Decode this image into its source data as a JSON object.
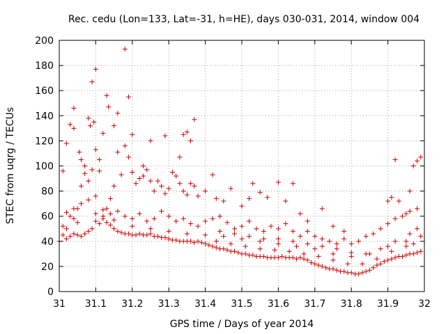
{
  "chart_data": {
    "type": "scatter",
    "title": "Rec. cedu (Lon=133, Lat=-31, h=HE), days 030-031, 2014, window 004",
    "xlabel": "GPS time / Days of year 2014",
    "ylabel": "STEC from uqrg / TECUs",
    "xlim": [
      31,
      32
    ],
    "ylim": [
      0,
      200
    ],
    "xticks": [
      "31",
      "31.1",
      "31.2",
      "31.3",
      "31.4",
      "31.5",
      "31.6",
      "31.7",
      "31.8",
      "31.9",
      "32"
    ],
    "yticks": [
      "0",
      "20",
      "40",
      "60",
      "80",
      "100",
      "120",
      "140",
      "160",
      "180",
      "200"
    ],
    "grid": true,
    "marker": "+",
    "marker_color": "#cc0000",
    "series": [
      {
        "name": "STEC",
        "points": [
          [
            31.01,
            96
          ],
          [
            31.02,
            118
          ],
          [
            31.03,
            133
          ],
          [
            31.04,
            130
          ],
          [
            31.04,
            146
          ],
          [
            31.055,
            111
          ],
          [
            31.06,
            105
          ],
          [
            31.07,
            100
          ],
          [
            31.08,
            138
          ],
          [
            31.085,
            132
          ],
          [
            31.09,
            167
          ],
          [
            31.095,
            135
          ],
          [
            31.1,
            177
          ],
          [
            31.11,
            105
          ],
          [
            31.12,
            126
          ],
          [
            31.13,
            156
          ],
          [
            31.135,
            147
          ],
          [
            31.15,
            132
          ],
          [
            31.16,
            142
          ],
          [
            31.18,
            193
          ],
          [
            31.19,
            155
          ],
          [
            31.2,
            125
          ],
          [
            31.23,
            100
          ],
          [
            31.25,
            120
          ],
          [
            31.29,
            124
          ],
          [
            31.33,
            107
          ],
          [
            31.34,
            125
          ],
          [
            31.35,
            127
          ],
          [
            31.36,
            120
          ],
          [
            31.37,
            137
          ],
          [
            31.01,
            52
          ],
          [
            31.02,
            50
          ],
          [
            31.03,
            60
          ],
          [
            31.04,
            58
          ],
          [
            31.05,
            66
          ],
          [
            31.06,
            84
          ],
          [
            31.07,
            94
          ],
          [
            31.08,
            88
          ],
          [
            31.09,
            97
          ],
          [
            31.1,
            113
          ],
          [
            31.11,
            96
          ],
          [
            31.12,
            60
          ],
          [
            31.13,
            66
          ],
          [
            31.14,
            74
          ],
          [
            31.15,
            84
          ],
          [
            31.16,
            111
          ],
          [
            31.17,
            93
          ],
          [
            31.18,
            116
          ],
          [
            31.19,
            107
          ],
          [
            31.2,
            95
          ],
          [
            31.21,
            86
          ],
          [
            31.22,
            90
          ],
          [
            31.23,
            92
          ],
          [
            31.24,
            97
          ],
          [
            31.25,
            88
          ],
          [
            31.26,
            80
          ],
          [
            31.27,
            88
          ],
          [
            31.28,
            84
          ],
          [
            31.29,
            78
          ],
          [
            31.3,
            82
          ],
          [
            31.31,
            95
          ],
          [
            31.32,
            92
          ],
          [
            31.33,
            86
          ],
          [
            31.34,
            80
          ],
          [
            31.35,
            77
          ],
          [
            31.36,
            86
          ],
          [
            31.37,
            84
          ],
          [
            31.38,
            76
          ],
          [
            31.4,
            80
          ],
          [
            31.42,
            93
          ],
          [
            31.43,
            74
          ],
          [
            31.45,
            72
          ],
          [
            31.47,
            82
          ],
          [
            31.5,
            68
          ],
          [
            31.52,
            74
          ],
          [
            31.53,
            86
          ],
          [
            31.55,
            79
          ],
          [
            31.57,
            75
          ],
          [
            31.6,
            87
          ],
          [
            31.62,
            72
          ],
          [
            31.64,
            86
          ],
          [
            31.66,
            62
          ],
          [
            31.68,
            56
          ],
          [
            31.72,
            66
          ],
          [
            31.75,
            52
          ],
          [
            31.78,
            48
          ],
          [
            31.9,
            72
          ],
          [
            31.91,
            75
          ],
          [
            31.92,
            105
          ],
          [
            31.93,
            72
          ],
          [
            31.95,
            62
          ],
          [
            31.96,
            80
          ],
          [
            31.97,
            100
          ],
          [
            31.98,
            104
          ],
          [
            31.99,
            107
          ],
          [
            31.0,
            40
          ],
          [
            31.01,
            45
          ],
          [
            31.02,
            42
          ],
          [
            31.03,
            44
          ],
          [
            31.04,
            46
          ],
          [
            31.05,
            45
          ],
          [
            31.06,
            44
          ],
          [
            31.07,
            46
          ],
          [
            31.08,
            48
          ],
          [
            31.09,
            50
          ],
          [
            31.1,
            56
          ],
          [
            31.11,
            54
          ],
          [
            31.12,
            58
          ],
          [
            31.13,
            55
          ],
          [
            31.14,
            53
          ],
          [
            31.15,
            50
          ],
          [
            31.16,
            48
          ],
          [
            31.17,
            47
          ],
          [
            31.18,
            46
          ],
          [
            31.19,
            46
          ],
          [
            31.2,
            45
          ],
          [
            31.21,
            45
          ],
          [
            31.22,
            46
          ],
          [
            31.23,
            45
          ],
          [
            31.24,
            45
          ],
          [
            31.25,
            46
          ],
          [
            31.26,
            44
          ],
          [
            31.27,
            44
          ],
          [
            31.28,
            43
          ],
          [
            31.29,
            43
          ],
          [
            31.3,
            42
          ],
          [
            31.31,
            41
          ],
          [
            31.32,
            41
          ],
          [
            31.33,
            40
          ],
          [
            31.34,
            40
          ],
          [
            31.35,
            40
          ],
          [
            31.36,
            40
          ],
          [
            31.37,
            39
          ],
          [
            31.38,
            40
          ],
          [
            31.39,
            39
          ],
          [
            31.4,
            38
          ],
          [
            31.41,
            37
          ],
          [
            31.42,
            36
          ],
          [
            31.43,
            35
          ],
          [
            31.44,
            34
          ],
          [
            31.45,
            34
          ],
          [
            31.46,
            33
          ],
          [
            31.47,
            32
          ],
          [
            31.48,
            32
          ],
          [
            31.49,
            31
          ],
          [
            31.5,
            30
          ],
          [
            31.51,
            30
          ],
          [
            31.52,
            29
          ],
          [
            31.53,
            29
          ],
          [
            31.54,
            28
          ],
          [
            31.55,
            28
          ],
          [
            31.56,
            28
          ],
          [
            31.57,
            27
          ],
          [
            31.58,
            27
          ],
          [
            31.59,
            27
          ],
          [
            31.6,
            27
          ],
          [
            31.61,
            28
          ],
          [
            31.62,
            27
          ],
          [
            31.63,
            27
          ],
          [
            31.64,
            27
          ],
          [
            31.65,
            26
          ],
          [
            31.66,
            27
          ],
          [
            31.67,
            26
          ],
          [
            31.68,
            25
          ],
          [
            31.69,
            23
          ],
          [
            31.7,
            22
          ],
          [
            31.71,
            21
          ],
          [
            31.72,
            20
          ],
          [
            31.73,
            19
          ],
          [
            31.74,
            18
          ],
          [
            31.75,
            18
          ],
          [
            31.76,
            17
          ],
          [
            31.77,
            16
          ],
          [
            31.78,
            16
          ],
          [
            31.79,
            15
          ],
          [
            31.8,
            15
          ],
          [
            31.81,
            14
          ],
          [
            31.82,
            14
          ],
          [
            31.83,
            15
          ],
          [
            31.84,
            16
          ],
          [
            31.85,
            17
          ],
          [
            31.86,
            19
          ],
          [
            31.87,
            21
          ],
          [
            31.88,
            22
          ],
          [
            31.89,
            24
          ],
          [
            31.9,
            25
          ],
          [
            31.91,
            26
          ],
          [
            31.92,
            27
          ],
          [
            31.93,
            28
          ],
          [
            31.94,
            28
          ],
          [
            31.95,
            29
          ],
          [
            31.96,
            30
          ],
          [
            31.97,
            30
          ],
          [
            31.98,
            31
          ],
          [
            31.99,
            32
          ],
          [
            31.02,
            63
          ],
          [
            31.04,
            66
          ],
          [
            31.06,
            70
          ],
          [
            31.08,
            73
          ],
          [
            31.1,
            76
          ],
          [
            31.12,
            65
          ],
          [
            31.14,
            62
          ],
          [
            31.16,
            64
          ],
          [
            31.18,
            60
          ],
          [
            31.2,
            58
          ],
          [
            31.22,
            62
          ],
          [
            31.24,
            56
          ],
          [
            31.26,
            58
          ],
          [
            31.28,
            64
          ],
          [
            31.3,
            60
          ],
          [
            31.32,
            56
          ],
          [
            31.34,
            58
          ],
          [
            31.36,
            54
          ],
          [
            31.38,
            52
          ],
          [
            31.4,
            56
          ],
          [
            31.42,
            58
          ],
          [
            31.44,
            60
          ],
          [
            31.46,
            55
          ],
          [
            31.48,
            50
          ],
          [
            31.5,
            52
          ],
          [
            31.52,
            56
          ],
          [
            31.54,
            50
          ],
          [
            31.56,
            48
          ],
          [
            31.58,
            52
          ],
          [
            31.6,
            50
          ],
          [
            31.62,
            54
          ],
          [
            31.64,
            48
          ],
          [
            31.66,
            44
          ],
          [
            31.68,
            48
          ],
          [
            31.7,
            44
          ],
          [
            31.72,
            42
          ],
          [
            31.74,
            40
          ],
          [
            31.76,
            38
          ],
          [
            31.78,
            42
          ],
          [
            31.8,
            38
          ],
          [
            31.82,
            40
          ],
          [
            31.84,
            44
          ],
          [
            31.86,
            46
          ],
          [
            31.88,
            50
          ],
          [
            31.9,
            54
          ],
          [
            31.92,
            58
          ],
          [
            31.94,
            60
          ],
          [
            31.96,
            64
          ],
          [
            31.98,
            66
          ],
          [
            31.05,
            55
          ],
          [
            31.1,
            62
          ],
          [
            31.15,
            57
          ],
          [
            31.2,
            52
          ],
          [
            31.25,
            50
          ],
          [
            31.3,
            48
          ],
          [
            31.35,
            46
          ],
          [
            31.4,
            45
          ],
          [
            31.45,
            44
          ],
          [
            31.5,
            42
          ],
          [
            31.55,
            40
          ],
          [
            31.6,
            38
          ],
          [
            31.65,
            36
          ],
          [
            31.7,
            34
          ],
          [
            31.75,
            30
          ],
          [
            31.8,
            28
          ],
          [
            31.85,
            30
          ],
          [
            31.9,
            36
          ],
          [
            31.95,
            40
          ],
          [
            31.99,
            44
          ],
          [
            31.43,
            40
          ],
          [
            31.47,
            38
          ],
          [
            31.51,
            36
          ],
          [
            31.55,
            34
          ],
          [
            31.59,
            33
          ],
          [
            31.63,
            32
          ],
          [
            31.67,
            30
          ],
          [
            31.71,
            28
          ],
          [
            31.75,
            25
          ],
          [
            31.79,
            22
          ],
          [
            31.83,
            22
          ],
          [
            31.87,
            26
          ],
          [
            31.91,
            32
          ],
          [
            31.95,
            36
          ],
          [
            31.97,
            38
          ],
          [
            31.44,
            48
          ],
          [
            31.48,
            46
          ],
          [
            31.52,
            44
          ],
          [
            31.56,
            42
          ],
          [
            31.6,
            42
          ],
          [
            31.64,
            40
          ],
          [
            31.68,
            38
          ],
          [
            31.72,
            36
          ],
          [
            31.76,
            34
          ],
          [
            31.8,
            31
          ],
          [
            31.84,
            30
          ],
          [
            31.88,
            34
          ],
          [
            31.92,
            40
          ],
          [
            31.96,
            46
          ],
          [
            31.98,
            50
          ]
        ]
      }
    ]
  }
}
